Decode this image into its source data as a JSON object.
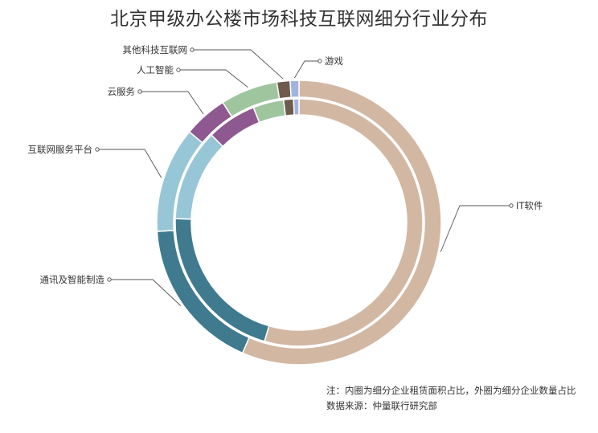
{
  "chart_data": {
    "type": "donut",
    "title": "北京甲级办公楼市场科技互联网细分行业分布",
    "categories": [
      "IT软件",
      "通讯及智能制造",
      "互联网服务平台",
      "云服务",
      "人工智能",
      "其他科技互联网",
      "游戏"
    ],
    "colors": [
      "#d2b7a3",
      "#3f7a8f",
      "#97c6d6",
      "#8e5890",
      "#9fc59f",
      "#6e5b4e",
      "#a3b3e0"
    ],
    "series": [
      {
        "ring": "outer",
        "values": [
          56.5,
          17.5,
          12,
          5,
          6.5,
          1.5,
          1
        ]
      },
      {
        "ring": "inner",
        "values": [
          54.5,
          21,
          12,
          6.5,
          4,
          1.3,
          0.7
        ]
      }
    ],
    "notes": [
      "注：内圈为细分企业租赁面积占比，外圈为细分企业数量占比",
      "数据来源：仲量联行研究部"
    ]
  }
}
